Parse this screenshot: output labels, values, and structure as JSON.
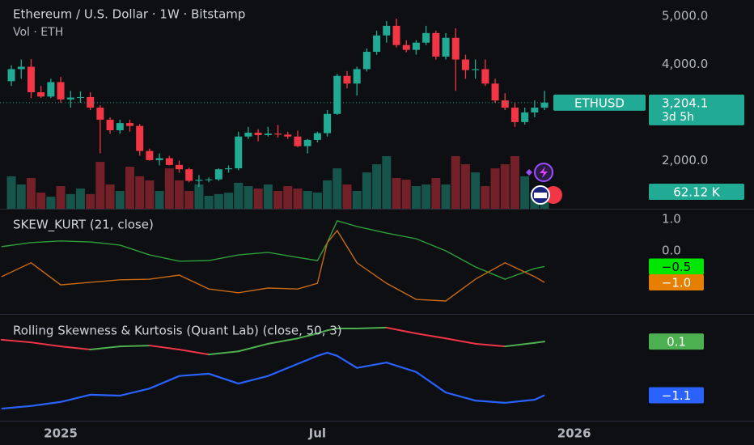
{
  "chart_data": [
    {
      "type": "candlestick",
      "title": "Ethereum / U.S. Dollar · 1W · Bitstamp",
      "subtitle": "Vol · ETH",
      "symbol": "ETHUSD",
      "countdown": "3d 5h",
      "last_price_label": "3,204.1",
      "up_color": "#22ab94",
      "down_color": "#f23645",
      "open": [
        3650,
        3900,
        3950,
        3420,
        3330,
        3630,
        3270,
        3310,
        3320,
        3100,
        2850,
        2630,
        2780,
        2720,
        2200,
        2010,
        2050,
        1910,
        1820,
        1580,
        1600,
        1610,
        1820,
        1840,
        2500,
        2580,
        2530,
        2560,
        2540,
        2500,
        2300,
        2430,
        2570,
        2970,
        3760,
        3600,
        3900,
        4260,
        4600,
        4800,
        4400,
        4300,
        4450,
        4650,
        4160,
        4550,
        4100,
        3880,
        3900,
        3600,
        3250,
        3100,
        2800,
        3000,
        3100
      ],
      "high": [
        3980,
        4100,
        4110,
        3550,
        3700,
        3740,
        3450,
        3440,
        3420,
        3150,
        2900,
        2850,
        2850,
        2760,
        2250,
        2150,
        2100,
        2000,
        1850,
        1700,
        1650,
        1840,
        1900,
        2600,
        2700,
        2650,
        2700,
        2740,
        2600,
        2620,
        2450,
        2600,
        3050,
        3800,
        3860,
        3950,
        4330,
        4700,
        4900,
        4950,
        4500,
        4500,
        4800,
        4700,
        4650,
        4750,
        4200,
        4100,
        4100,
        3700,
        3400,
        3200,
        3100,
        3250,
        3450
      ],
      "low": [
        3550,
        3700,
        3300,
        3300,
        3300,
        3200,
        3100,
        3200,
        3050,
        2150,
        2560,
        2560,
        2600,
        2100,
        2000,
        1900,
        1900,
        1750,
        1550,
        1450,
        1550,
        1580,
        1750,
        1800,
        2450,
        2400,
        2500,
        2480,
        2450,
        2280,
        2150,
        2380,
        2500,
        2950,
        3500,
        3350,
        3850,
        4200,
        4450,
        4350,
        4250,
        4200,
        4400,
        4100,
        4100,
        3450,
        3700,
        3700,
        3550,
        3200,
        3050,
        2700,
        2750,
        2900,
        3050
      ],
      "close": [
        3900,
        3950,
        3420,
        3330,
        3630,
        3270,
        3310,
        3320,
        3100,
        2850,
        2630,
        2780,
        2720,
        2200,
        2010,
        2050,
        1910,
        1820,
        1580,
        1600,
        1610,
        1820,
        1840,
        2500,
        2580,
        2530,
        2560,
        2540,
        2500,
        2300,
        2430,
        2570,
        2970,
        3760,
        3600,
        3900,
        4260,
        4600,
        4800,
        4400,
        4300,
        4450,
        4650,
        4160,
        4550,
        4100,
        3880,
        3900,
        3600,
        3250,
        3100,
        2800,
        3000,
        3100,
        3204.1
      ],
      "volume": [
        135000,
        101000,
        128000,
        67000,
        50000,
        94000,
        61000,
        84000,
        61000,
        195000,
        101000,
        74000,
        175000,
        135000,
        118000,
        74000,
        168000,
        118000,
        74000,
        101000,
        54000,
        61000,
        67000,
        108000,
        94000,
        84000,
        101000,
        74000,
        94000,
        84000,
        74000,
        67000,
        118000,
        168000,
        101000,
        74000,
        151000,
        185000,
        219000,
        128000,
        121000,
        94000,
        101000,
        128000,
        101000,
        219000,
        185000,
        151000,
        94000,
        168000,
        185000,
        219000,
        135000,
        67000,
        62120
      ],
      "volume_ylim": [
        0,
        700000
      ],
      "volume_last_label": "62.12 K",
      "xlim": [
        -1.15,
        64.4
      ],
      "xticks": [
        {
          "value": 5,
          "label": "2025"
        },
        {
          "value": 31,
          "label": "Jul"
        },
        {
          "value": 57,
          "label": "2026"
        }
      ],
      "ylim": [
        1000,
        5336
      ],
      "yticks": [
        {
          "value": 5000,
          "label": "5,000.0"
        },
        {
          "value": 4000,
          "label": "4,000.0"
        },
        {
          "value": 2000,
          "label": "2,000.0"
        }
      ]
    },
    {
      "type": "line",
      "title": "SKEW_KURT (21, close)",
      "xlim": [
        -1.15,
        64.4
      ],
      "ylim": [
        -2.0,
        1.28
      ],
      "yticks": [
        {
          "value": 1,
          "label": "1.0"
        },
        {
          "value": 0,
          "label": "0.0"
        }
      ],
      "x": [
        -1,
        2,
        5,
        8,
        11,
        14,
        17,
        20,
        23,
        26,
        29,
        31,
        32,
        33,
        35,
        38,
        41,
        44,
        47,
        50,
        53,
        54
      ],
      "series": [
        {
          "color": "#2e9e3a",
          "label_color": "#00e600",
          "label_text_color": "#000",
          "last_label": "−0.5",
          "values": [
            0.13,
            0.26,
            0.31,
            0.28,
            0.18,
            -0.13,
            -0.33,
            -0.31,
            -0.13,
            -0.05,
            -0.21,
            -0.31,
            0.26,
            0.95,
            0.77,
            0.56,
            0.38,
            0.0,
            -0.51,
            -0.9,
            -0.56,
            -0.5
          ]
        },
        {
          "color": "#c86a16",
          "label_color": "#e67e00",
          "label_text_color": "#fff",
          "last_label": "−1.0",
          "values": [
            -0.82,
            -0.38,
            -1.08,
            -1.0,
            -0.92,
            -0.9,
            -0.77,
            -1.21,
            -1.33,
            -1.18,
            -1.21,
            -1.03,
            0.26,
            0.64,
            -0.38,
            -1.03,
            -1.54,
            -1.59,
            -0.9,
            -0.38,
            -0.82,
            -1.0
          ]
        }
      ]
    },
    {
      "type": "line",
      "title": "Rolling Skewness & Kurtosis (Quant Lab) (close, 50, 3)",
      "xlim": [
        -1.15,
        64.4
      ],
      "ylim": [
        -1.67,
        0.68
      ],
      "x": [
        -1,
        2,
        5,
        8,
        11,
        14,
        17,
        20,
        23,
        26,
        29,
        31,
        32,
        33,
        35,
        38,
        41,
        44,
        47,
        50,
        53,
        54
      ],
      "series": [
        {
          "color": "#4caf50",
          "down_color": "#f23645",
          "label_color": "#4caf50",
          "label_text_color": "#fff",
          "last_label": "0.1",
          "values": [
            0.14,
            0.08,
            -0.01,
            -0.08,
            -0.01,
            0.01,
            -0.08,
            -0.19,
            -0.12,
            0.05,
            0.17,
            0.28,
            0.35,
            0.39,
            0.39,
            0.41,
            0.28,
            0.17,
            0.05,
            -0.01,
            0.07,
            0.1
          ]
        },
        {
          "color": "#2962ff",
          "label_color": "#2962ff",
          "label_text_color": "#fff",
          "last_label": "−1.1",
          "values": [
            -1.4,
            -1.34,
            -1.25,
            -1.09,
            -1.11,
            -0.95,
            -0.67,
            -0.62,
            -0.84,
            -0.67,
            -0.4,
            -0.22,
            -0.15,
            -0.22,
            -0.49,
            -0.37,
            -0.58,
            -1.04,
            -1.22,
            -1.27,
            -1.2,
            -1.1
          ]
        }
      ]
    }
  ]
}
